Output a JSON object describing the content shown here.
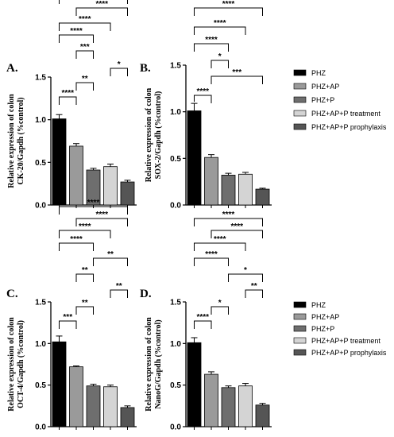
{
  "chart_data": [
    {
      "type": "bar",
      "panel": "A.",
      "ylabel_lines": [
        "Relative expression of colon",
        "CK-20/Gapdh (%control)"
      ],
      "ylim": [
        0,
        1.5
      ],
      "yticks": [
        "0.0",
        "0.5",
        "1.0",
        "1.5"
      ],
      "categories": [
        "PHZ",
        "PHZ+AP",
        "PHZ+P",
        "PHZ+AP+P treatment",
        "PHZ+AP+P prophylaxis"
      ],
      "values": [
        1.01,
        0.69,
        0.41,
        0.45,
        0.27
      ],
      "errors": [
        0.05,
        0.03,
        0.02,
        0.03,
        0.02
      ],
      "significance": [
        {
          "from": 0,
          "to": 1,
          "label": "****"
        },
        {
          "from": 1,
          "to": 2,
          "label": "**"
        },
        {
          "from": 3,
          "to": 4,
          "label": "*"
        },
        {
          "from": 1,
          "to": 2,
          "label": "***"
        },
        {
          "from": 0,
          "to": 2,
          "label": "****"
        },
        {
          "from": 0,
          "to": 3,
          "label": "****"
        },
        {
          "from": 1,
          "to": 4,
          "label": "****"
        },
        {
          "from": 0,
          "to": 4,
          "label": "****"
        }
      ]
    },
    {
      "type": "bar",
      "panel": "B.",
      "ylabel_lines": [
        "Relative expression of colon",
        "SOX-2/Gapdh (%control)"
      ],
      "ylim": [
        0,
        1.5
      ],
      "yticks": [
        "0.0",
        "0.5",
        "1.0",
        "1.5"
      ],
      "categories": [
        "PHZ",
        "PHZ+AP",
        "PHZ+P",
        "PHZ+AP+P treatment",
        "PHZ+AP+P prophylaxis"
      ],
      "values": [
        1.01,
        0.51,
        0.32,
        0.33,
        0.17
      ],
      "errors": [
        0.08,
        0.03,
        0.02,
        0.02,
        0.01
      ],
      "significance": [
        {
          "from": 0,
          "to": 1,
          "label": "****"
        },
        {
          "from": 1,
          "to": 4,
          "label": "***"
        },
        {
          "from": 1,
          "to": 2,
          "label": "*"
        },
        {
          "from": 0,
          "to": 2,
          "label": "****"
        },
        {
          "from": 0,
          "to": 3,
          "label": "****"
        },
        {
          "from": 0,
          "to": 4,
          "label": "****"
        }
      ]
    },
    {
      "type": "bar",
      "panel": "C.",
      "ylabel_lines": [
        "Relative expression of colon",
        "OCT-4/Gapdh (%control)"
      ],
      "ylim": [
        0,
        1.5
      ],
      "yticks": [
        "0.0",
        "0.5",
        "1.0",
        "1.5"
      ],
      "categories": [
        "PHZ",
        "PHZ+AP",
        "PHZ+P",
        "PHZ+AP+P treatment",
        "PHZ+AP+P prophylaxis"
      ],
      "values": [
        1.02,
        0.72,
        0.49,
        0.48,
        0.23
      ],
      "errors": [
        0.07,
        0.01,
        0.02,
        0.02,
        0.02
      ],
      "significance": [
        {
          "from": 0,
          "to": 1,
          "label": "***"
        },
        {
          "from": 1,
          "to": 2,
          "label": "**"
        },
        {
          "from": 3,
          "to": 4,
          "label": "**"
        },
        {
          "from": 1,
          "to": 2,
          "label": "**"
        },
        {
          "from": 2,
          "to": 4,
          "label": "**"
        },
        {
          "from": 0,
          "to": 2,
          "label": "****"
        },
        {
          "from": 0,
          "to": 3,
          "label": "****"
        },
        {
          "from": 1,
          "to": 4,
          "label": "****"
        },
        {
          "from": 0,
          "to": 4,
          "label": "****"
        }
      ]
    },
    {
      "type": "bar",
      "panel": "D.",
      "ylabel_lines": [
        "Relative expression of colon",
        "NanoG/Gapdh (%control)"
      ],
      "ylim": [
        0,
        1.5
      ],
      "yticks": [
        "0.0",
        "0.5",
        "1.0",
        "1.5"
      ],
      "categories": [
        "PHZ",
        "PHZ+AP",
        "PHZ+P",
        "PHZ+AP+P treatment",
        "PHZ+AP+P prophylaxis"
      ],
      "values": [
        1.01,
        0.63,
        0.47,
        0.49,
        0.26
      ],
      "errors": [
        0.06,
        0.03,
        0.02,
        0.03,
        0.02
      ],
      "significance": [
        {
          "from": 0,
          "to": 1,
          "label": "****"
        },
        {
          "from": 1,
          "to": 2,
          "label": "*"
        },
        {
          "from": 3,
          "to": 4,
          "label": "**"
        },
        {
          "from": 2,
          "to": 4,
          "label": "*"
        },
        {
          "from": 0,
          "to": 2,
          "label": "****"
        },
        {
          "from": 0,
          "to": 3,
          "label": "****"
        },
        {
          "from": 1,
          "to": 4,
          "label": "****"
        },
        {
          "from": 0,
          "to": 4,
          "label": "****"
        }
      ]
    }
  ],
  "legends": [
    {
      "items": [
        {
          "label": "PHZ",
          "color": "#000000"
        },
        {
          "label": "PHZ+AP",
          "color": "#9a9a9a"
        },
        {
          "label": "PHZ+P",
          "color": "#6e6e6e"
        },
        {
          "label": "PHZ+AP+P treatment",
          "color": "#d4d4d4"
        },
        {
          "label": "PHZ+AP+P prophylaxis",
          "color": "#555555"
        }
      ]
    },
    {
      "items": [
        {
          "label": "PHZ",
          "color": "#000000"
        },
        {
          "label": "PHZ+AP",
          "color": "#9a9a9a"
        },
        {
          "label": "PHZ+P",
          "color": "#6e6e6e"
        },
        {
          "label": "PHZ+AP+P treatment",
          "color": "#d4d4d4"
        },
        {
          "label": "PHZ+AP+P prophylaxis",
          "color": "#555555"
        }
      ]
    }
  ]
}
